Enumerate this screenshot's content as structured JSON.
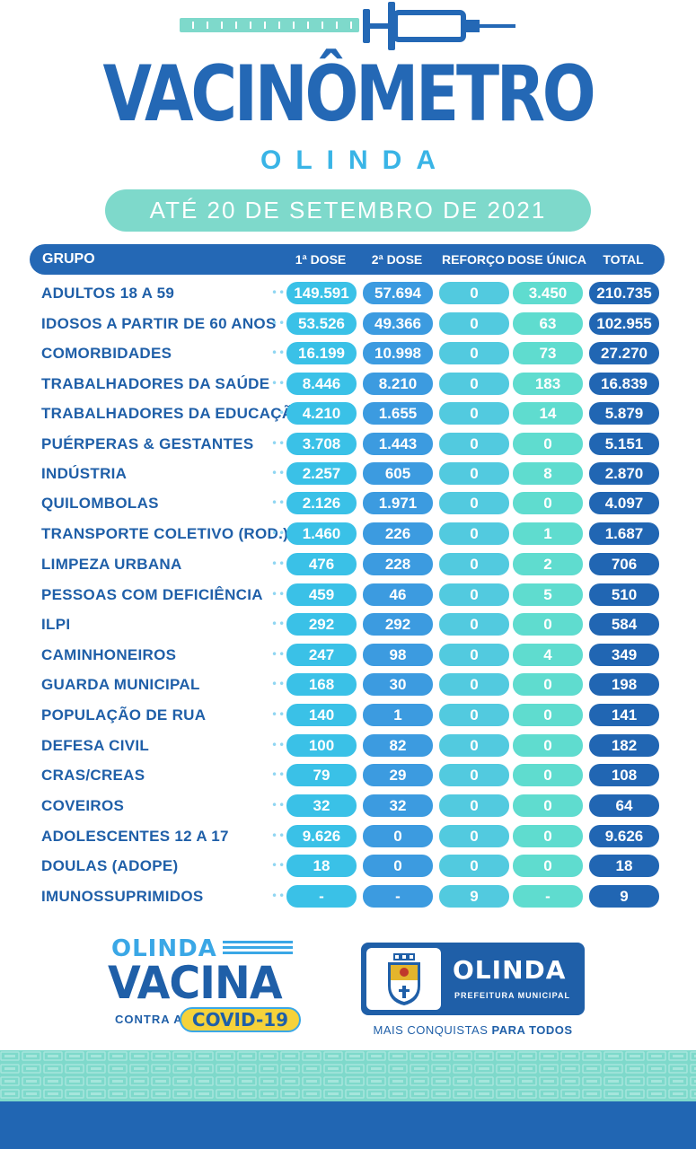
{
  "header": {
    "title": "VACINÔMETRO",
    "subtitle": "OLINDA",
    "date": "ATÉ 20 DE SETEMBRO DE 2021"
  },
  "table": {
    "columns": {
      "group": "GRUPO",
      "dose1": "1ª DOSE",
      "dose2": "2ª DOSE",
      "reforco": "REFORÇO",
      "dose_unica": "DOSE ÚNICA",
      "total": "TOTAL"
    },
    "rows": [
      {
        "label": "ADULTOS 18 A 59",
        "d1": "149.591",
        "d2": "57.694",
        "ref": "0",
        "du": "3.450",
        "total": "210.735"
      },
      {
        "label": "IDOSOS A PARTIR DE 60 ANOS",
        "d1": "53.526",
        "d2": "49.366",
        "ref": "0",
        "du": "63",
        "total": "102.955"
      },
      {
        "label": "COMORBIDADES",
        "d1": "16.199",
        "d2": "10.998",
        "ref": "0",
        "du": "73",
        "total": "27.270"
      },
      {
        "label": "TRABALHADORES DA SAÚDE",
        "d1": "8.446",
        "d2": "8.210",
        "ref": "0",
        "du": "183",
        "total": "16.839"
      },
      {
        "label": "TRABALHADORES DA EDUCAÇÃO",
        "d1": "4.210",
        "d2": "1.655",
        "ref": "0",
        "du": "14",
        "total": "5.879"
      },
      {
        "label": "PUÉRPERAS & GESTANTES",
        "d1": "3.708",
        "d2": "1.443",
        "ref": "0",
        "du": "0",
        "total": "5.151"
      },
      {
        "label": "INDÚSTRIA",
        "d1": "2.257",
        "d2": "605",
        "ref": "0",
        "du": "8",
        "total": "2.870"
      },
      {
        "label": "QUILOMBOLAS",
        "d1": "2.126",
        "d2": "1.971",
        "ref": "0",
        "du": "0",
        "total": "4.097"
      },
      {
        "label": "TRANSPORTE COLETIVO (ROD.)",
        "d1": "1.460",
        "d2": "226",
        "ref": "0",
        "du": "1",
        "total": "1.687"
      },
      {
        "label": "LIMPEZA URBANA",
        "d1": "476",
        "d2": "228",
        "ref": "0",
        "du": "2",
        "total": "706"
      },
      {
        "label": "PESSOAS COM DEFICIÊNCIA",
        "d1": "459",
        "d2": "46",
        "ref": "0",
        "du": "5",
        "total": "510"
      },
      {
        "label": "ILPI",
        "d1": "292",
        "d2": "292",
        "ref": "0",
        "du": "0",
        "total": "584"
      },
      {
        "label": "CAMINHONEIROS",
        "d1": "247",
        "d2": "98",
        "ref": "0",
        "du": "4",
        "total": "349"
      },
      {
        "label": "GUARDA MUNICIPAL",
        "d1": "168",
        "d2": "30",
        "ref": "0",
        "du": "0",
        "total": "198"
      },
      {
        "label": "POPULAÇÃO DE RUA",
        "d1": "140",
        "d2": "1",
        "ref": "0",
        "du": "0",
        "total": "141"
      },
      {
        "label": "DEFESA CIVIL",
        "d1": "100",
        "d2": "82",
        "ref": "0",
        "du": "0",
        "total": "182"
      },
      {
        "label": "CRAS/CREAS",
        "d1": "79",
        "d2": "29",
        "ref": "0",
        "du": "0",
        "total": "108"
      },
      {
        "label": "COVEIROS",
        "d1": "32",
        "d2": "32",
        "ref": "0",
        "du": "0",
        "total": "64"
      },
      {
        "label": "ADOLESCENTES 12 A 17",
        "d1": "9.626",
        "d2": "0",
        "ref": "0",
        "du": "0",
        "total": "9.626"
      },
      {
        "label": "DOULAS (ADOPE)",
        "d1": "18",
        "d2": "0",
        "ref": "0",
        "du": "0",
        "total": "18"
      },
      {
        "label": "IMUNOSSUPRIMIDOS",
        "d1": "-",
        "d2": "-",
        "ref": "9",
        "du": "-",
        "total": "9"
      }
    ]
  },
  "footer": {
    "campaign": {
      "line1": "OLINDA",
      "line2": "VACINA",
      "line3": "CONTRA A",
      "badge": "COVID-19"
    },
    "prefeitura": {
      "name": "OLINDA",
      "sub": "PREFEITURA MUNICIPAL",
      "slogan_normal": "MAIS CONQUISTAS ",
      "slogan_bold": "PARA TODOS"
    }
  },
  "colors": {
    "primary_blue": "#2468b5",
    "light_blue": "#39b4e6",
    "teal": "#7ed9cb",
    "yellow": "#f5d23a"
  },
  "icons": [
    "syringe-icon",
    "crest-icon"
  ]
}
